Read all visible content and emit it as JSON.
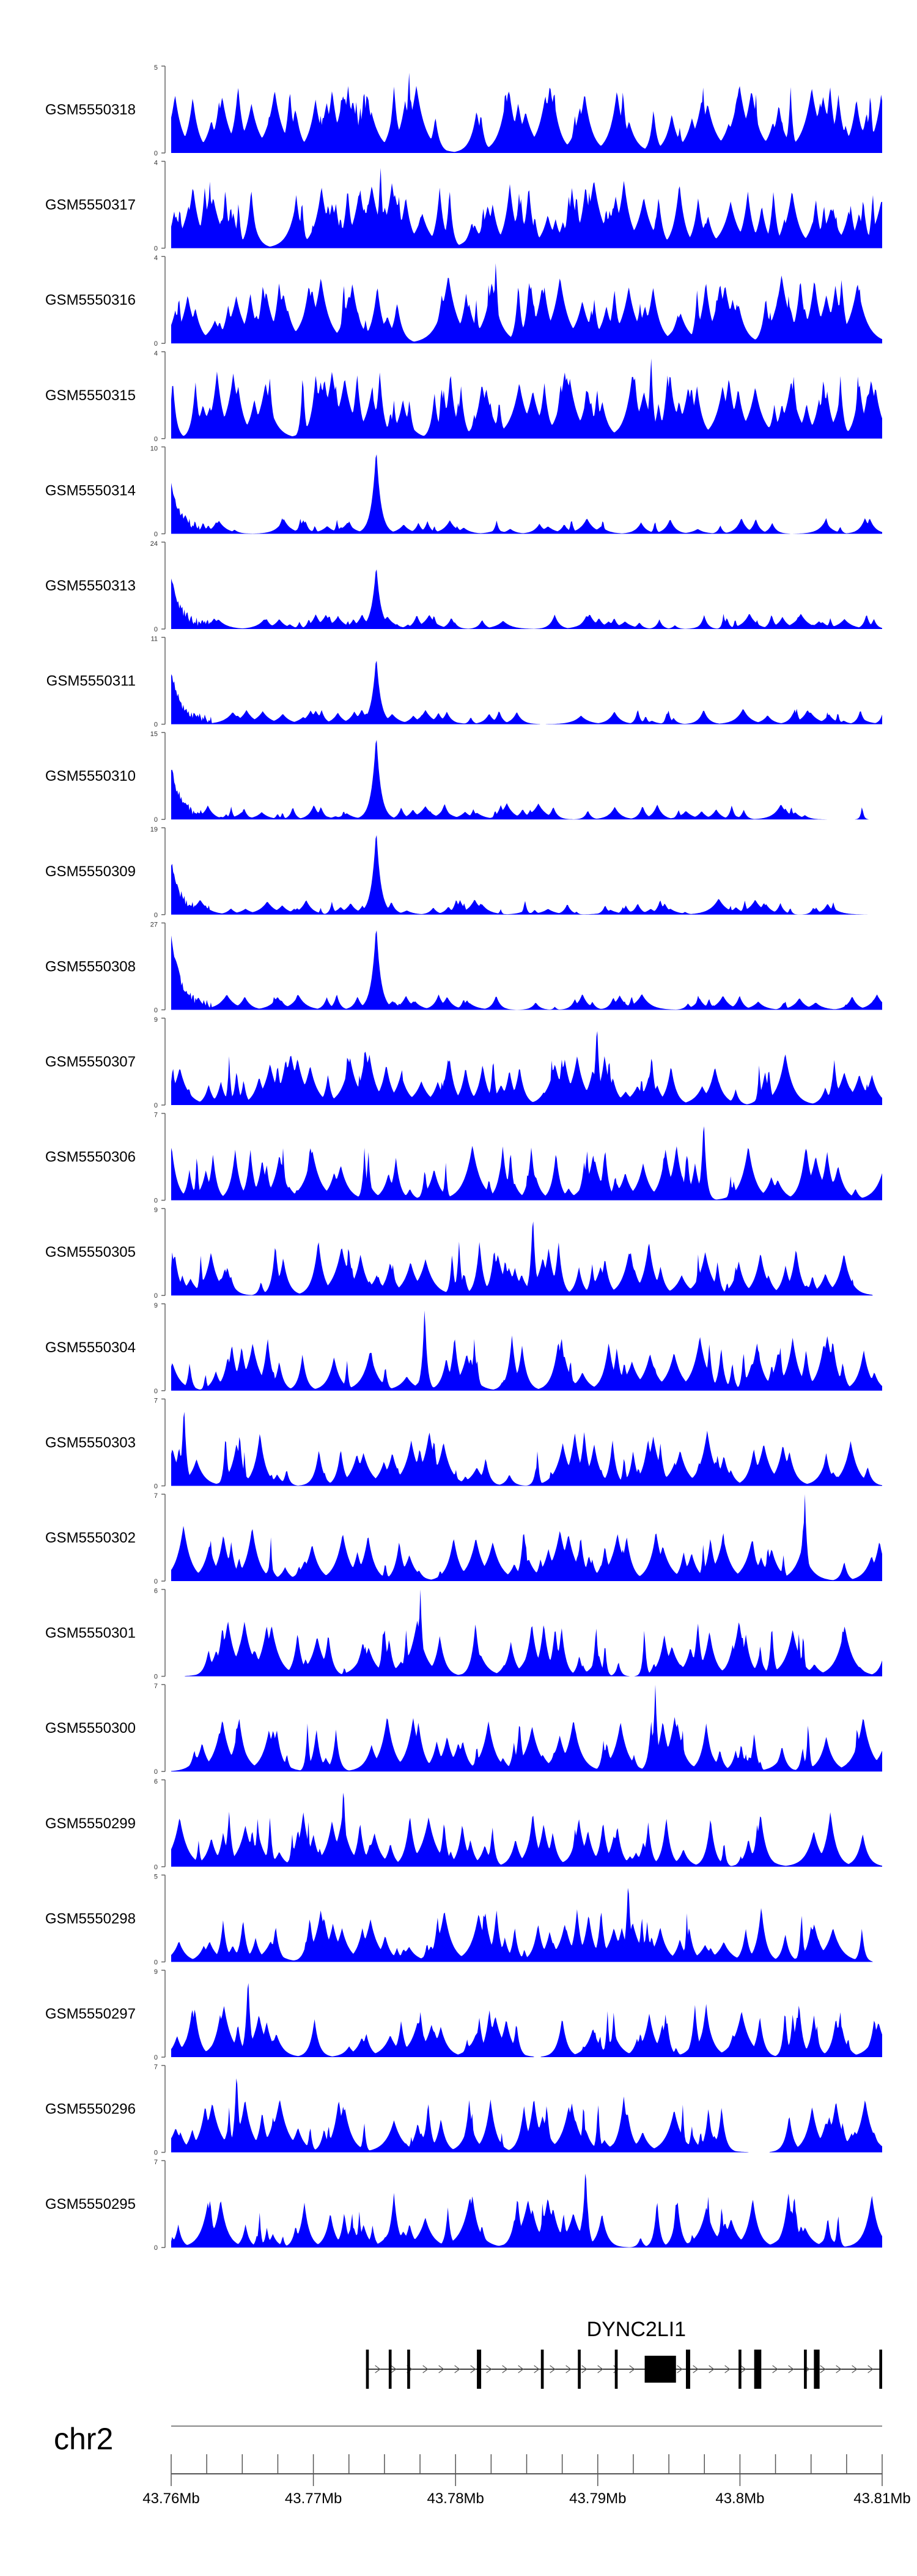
{
  "chart_data": {
    "type": "area",
    "color": "#0000ff",
    "chromosome": "chr2",
    "xlim": [
      43.76,
      43.81
    ],
    "x_ticks": [
      "43.76Mb",
      "43.77Mb",
      "43.78Mb",
      "43.79Mb",
      "43.8Mb",
      "43.81Mb"
    ],
    "gene": {
      "name": "DYNC2LI1",
      "start": 43.7737,
      "end": 43.81,
      "strand": "+",
      "exons": [
        [
          43.7737,
          43.7739
        ],
        [
          43.7753,
          43.7755
        ],
        [
          43.7766,
          43.7768
        ],
        [
          43.7815,
          43.7818
        ],
        [
          43.786,
          43.7862
        ],
        [
          43.7886,
          43.7888
        ],
        [
          43.7912,
          43.7914
        ],
        [
          43.7933,
          43.7955
        ],
        [
          43.7962,
          43.7965
        ],
        [
          43.7999,
          43.8001
        ],
        [
          43.801,
          43.8015
        ],
        [
          43.8045,
          43.8047
        ],
        [
          43.8052,
          43.8056
        ],
        [
          43.8098,
          43.81
        ]
      ]
    },
    "tracks": [
      {
        "name": "GSM5550318",
        "ymax": 5,
        "max_pos": 43.7767,
        "peak": 1.0,
        "pattern": "uniform"
      },
      {
        "name": "GSM5550317",
        "ymax": 4,
        "max_pos": 43.7747,
        "peak": 1.0,
        "pattern": "uniform"
      },
      {
        "name": "GSM5550316",
        "ymax": 4,
        "max_pos": 43.7828,
        "peak": 1.0,
        "pattern": "uniform"
      },
      {
        "name": "GSM5550315",
        "ymax": 4,
        "max_pos": 43.7937,
        "peak": 1.0,
        "pattern": "uniform"
      },
      {
        "name": "GSM5550314",
        "ymax": 10,
        "max_pos": 43.7744,
        "peak": 1.0,
        "pattern": "focal"
      },
      {
        "name": "GSM5550313",
        "ymax": 24,
        "max_pos": 43.7744,
        "peak": 0.75,
        "pattern": "focal"
      },
      {
        "name": "GSM5550311",
        "ymax": 11,
        "max_pos": 43.7744,
        "peak": 0.8,
        "pattern": "focal"
      },
      {
        "name": "GSM5550310",
        "ymax": 15,
        "max_pos": 43.7744,
        "peak": 1.0,
        "pattern": "focal"
      },
      {
        "name": "GSM5550309",
        "ymax": 19,
        "max_pos": 43.7744,
        "peak": 1.0,
        "pattern": "focal"
      },
      {
        "name": "GSM5550308",
        "ymax": 27,
        "max_pos": 43.7602,
        "peak": 1.0,
        "pattern": "focal"
      },
      {
        "name": "GSM5550307",
        "ymax": 9,
        "max_pos": 43.7899,
        "peak": 1.0,
        "pattern": "spiky"
      },
      {
        "name": "GSM5550306",
        "ymax": 7,
        "max_pos": 43.7974,
        "peak": 1.0,
        "pattern": "spiky"
      },
      {
        "name": "GSM5550305",
        "ymax": 9,
        "max_pos": 43.7854,
        "peak": 1.0,
        "pattern": "spiky"
      },
      {
        "name": "GSM5550304",
        "ymax": 9,
        "max_pos": 43.7778,
        "peak": 1.0,
        "pattern": "spiky"
      },
      {
        "name": "GSM5550303",
        "ymax": 7,
        "max_pos": 43.7609,
        "peak": 1.0,
        "pattern": "spiky"
      },
      {
        "name": "GSM5550302",
        "ymax": 7,
        "max_pos": 43.8045,
        "peak": 1.0,
        "pattern": "spiky"
      },
      {
        "name": "GSM5550301",
        "ymax": 6,
        "max_pos": 43.7775,
        "peak": 1.0,
        "pattern": "spiky"
      },
      {
        "name": "GSM5550300",
        "ymax": 7,
        "max_pos": 43.794,
        "peak": 1.0,
        "pattern": "spiky"
      },
      {
        "name": "GSM5550299",
        "ymax": 6,
        "max_pos": 43.7721,
        "peak": 1.0,
        "pattern": "spiky"
      },
      {
        "name": "GSM5550298",
        "ymax": 5,
        "max_pos": 43.7921,
        "peak": 1.0,
        "pattern": "spiky"
      },
      {
        "name": "GSM5550297",
        "ymax": 9,
        "max_pos": 43.7654,
        "peak": 1.0,
        "pattern": "spiky"
      },
      {
        "name": "GSM5550296",
        "ymax": 7,
        "max_pos": 43.7646,
        "peak": 1.0,
        "pattern": "spiky"
      },
      {
        "name": "GSM5550295",
        "ymax": 7,
        "max_pos": 43.7891,
        "peak": 1.0,
        "pattern": "spiky"
      }
    ]
  }
}
